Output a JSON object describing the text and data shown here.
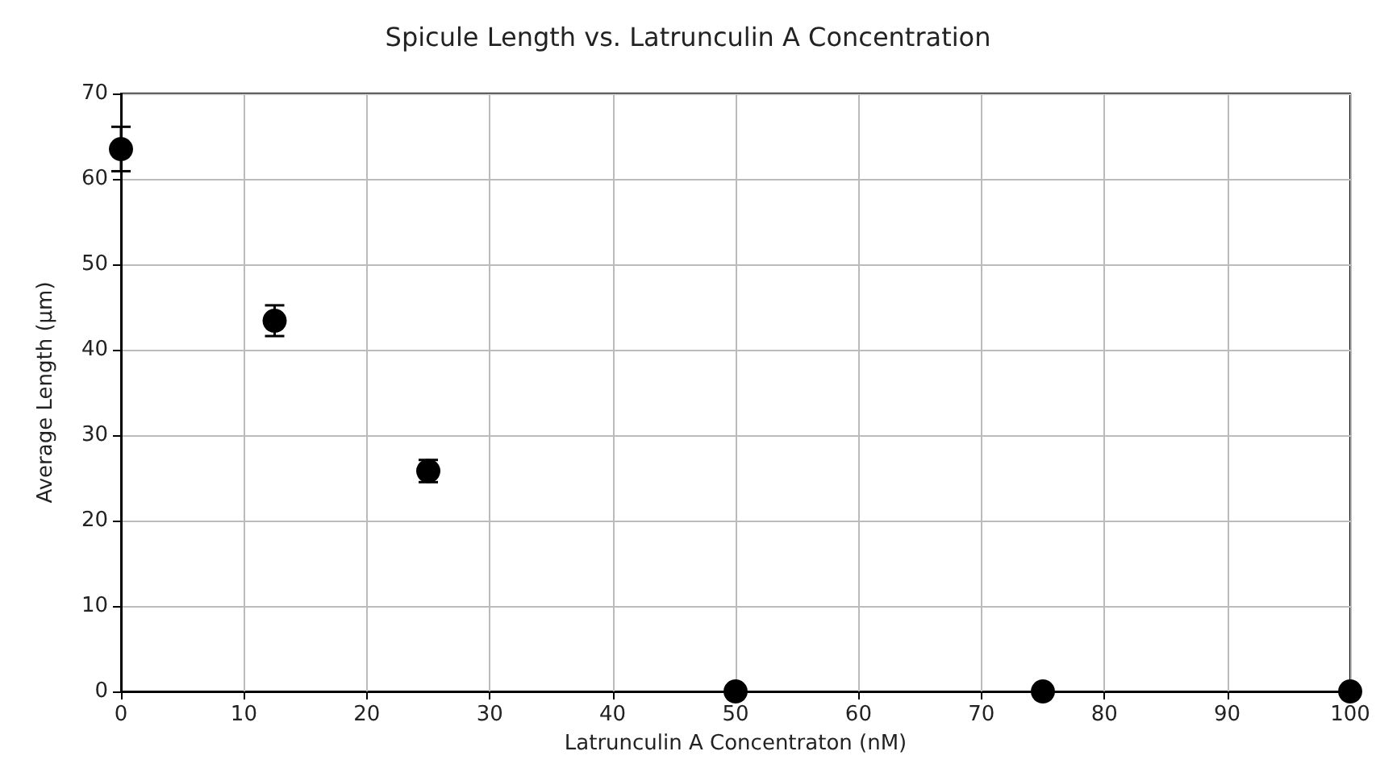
{
  "chart_data": {
    "type": "scatter",
    "title": "Spicule Length vs. Latrunculin A Concentration",
    "xlabel": "Latrunculin A Concentraton (nM)",
    "ylabel": "Average Length (μm)",
    "x": [
      0,
      12.5,
      25,
      50,
      75,
      100
    ],
    "values": [
      63.5,
      43.4,
      25.8,
      0,
      0,
      0
    ],
    "errors": [
      2.6,
      1.8,
      1.3,
      null,
      null,
      null
    ],
    "color": "#000000",
    "marker": "circle",
    "xlim": [
      0,
      100
    ],
    "xticks": [
      0,
      10,
      20,
      30,
      40,
      50,
      60,
      70,
      80,
      90,
      100
    ],
    "ylim": [
      0,
      70
    ],
    "yticks": [
      0,
      10,
      20,
      30,
      40,
      50,
      60,
      70
    ],
    "grid": true
  }
}
